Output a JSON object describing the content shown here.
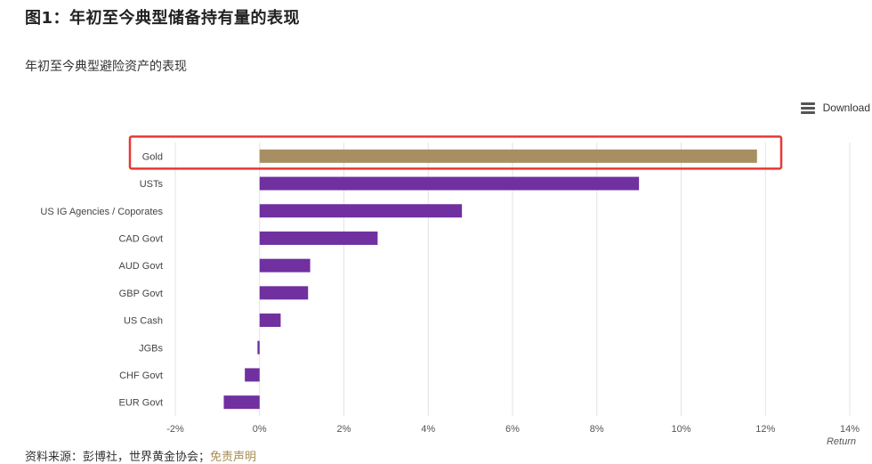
{
  "header": {
    "title": "图1：年初至今典型储备持有量的表现",
    "subtitle": "年初至今典型避险资产的表现"
  },
  "toolbar": {
    "download_label": "Download",
    "download_icon": "menu-icon"
  },
  "footer": {
    "source_label": "资料来源：彭博社，世界黄金协会；",
    "disclaimer_label": "免责声明"
  },
  "colors": {
    "gold": "#a88f63",
    "purple": "#7030a0",
    "highlight": "#e53935",
    "disclaimer": "#a88d50"
  },
  "chart_data": {
    "type": "bar",
    "orientation": "horizontal",
    "title": "",
    "xlabel": "Return",
    "ylabel": "",
    "categories": [
      "Gold",
      "USTs",
      "US IG Agencies / Coporates",
      "CAD Govt",
      "AUD Govt",
      "GBP Govt",
      "US Cash",
      "JGBs",
      "CHF Govt",
      "EUR Govt"
    ],
    "values": [
      11.8,
      9.0,
      4.8,
      2.8,
      1.2,
      1.15,
      0.5,
      -0.05,
      -0.35,
      -0.85
    ],
    "xlim": [
      -2,
      14
    ],
    "xticks": [
      -2,
      0,
      2,
      4,
      6,
      8,
      10,
      12,
      14
    ],
    "xtick_suffix": "%",
    "grid": "vertical",
    "highlighted_category": "Gold"
  }
}
